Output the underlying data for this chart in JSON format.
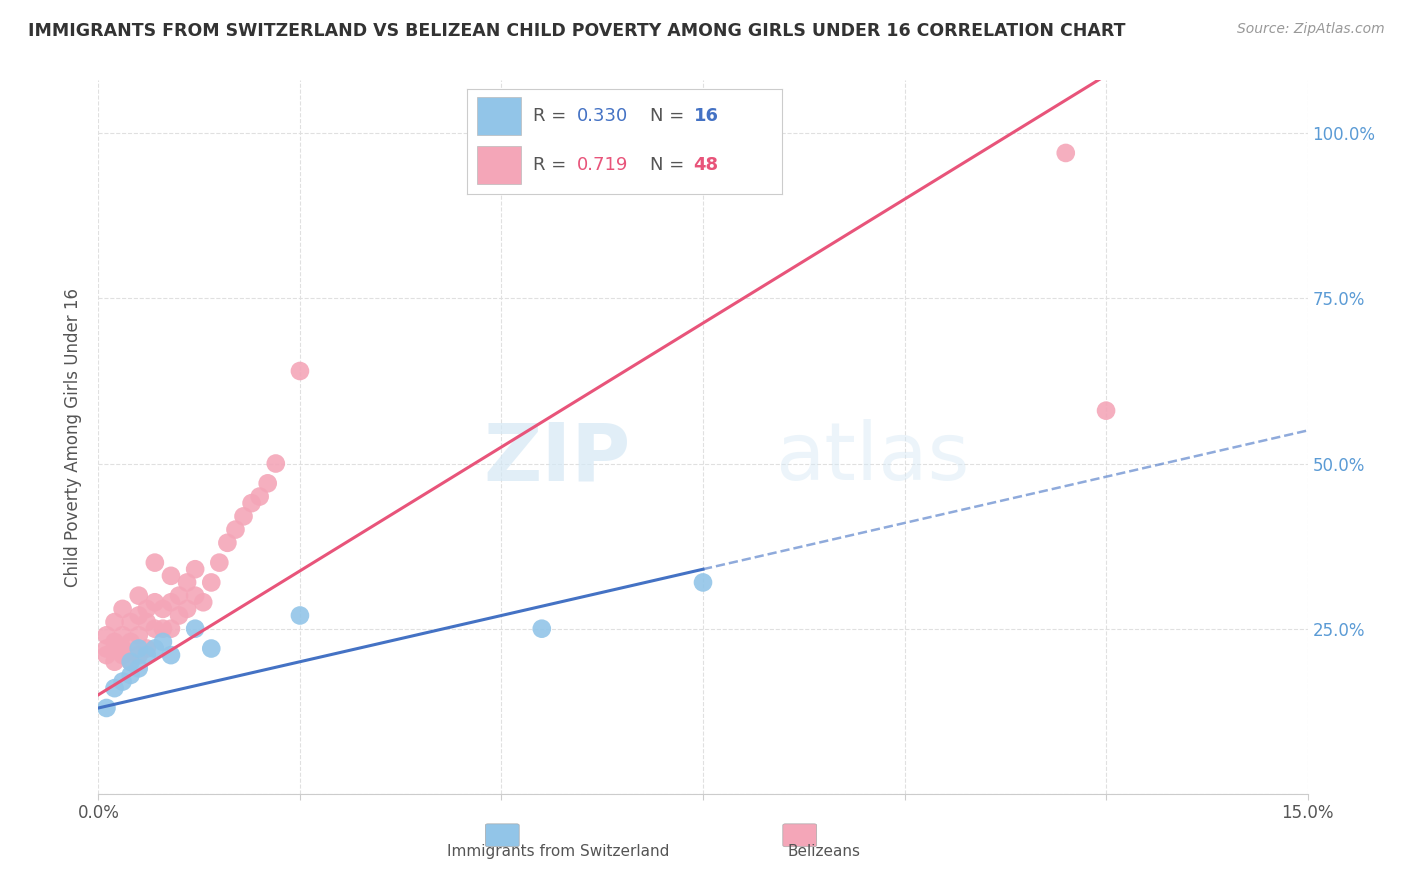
{
  "title": "IMMIGRANTS FROM SWITZERLAND VS BELIZEAN CHILD POVERTY AMONG GIRLS UNDER 16 CORRELATION CHART",
  "source": "Source: ZipAtlas.com",
  "ylabel": "Child Poverty Among Girls Under 16",
  "ytick_labels": [
    "",
    "25.0%",
    "50.0%",
    "75.0%",
    "100.0%"
  ],
  "ytick_values": [
    0.0,
    0.25,
    0.5,
    0.75,
    1.0
  ],
  "xmin": 0.0,
  "xmax": 0.15,
  "ymin": 0.0,
  "ymax": 1.08,
  "legend_blue_r": "0.330",
  "legend_blue_n": "16",
  "legend_pink_r": "0.719",
  "legend_pink_n": "48",
  "blue_color": "#92C5E8",
  "pink_color": "#F4A6B8",
  "blue_line_color": "#4472C4",
  "pink_line_color": "#E8547A",
  "blue_line_slope": 2.8,
  "blue_line_intercept": 0.13,
  "pink_line_slope": 7.5,
  "pink_line_intercept": 0.15,
  "watermark_zip": "ZIP",
  "watermark_atlas": "atlas",
  "background_color": "#ffffff",
  "grid_color": "#e0e0e0",
  "blue_x": [
    0.001,
    0.002,
    0.003,
    0.004,
    0.004,
    0.005,
    0.005,
    0.006,
    0.007,
    0.008,
    0.009,
    0.012,
    0.014,
    0.025,
    0.055,
    0.075
  ],
  "blue_y": [
    0.13,
    0.16,
    0.17,
    0.18,
    0.2,
    0.19,
    0.22,
    0.21,
    0.22,
    0.23,
    0.21,
    0.25,
    0.22,
    0.27,
    0.25,
    0.32
  ],
  "pink_x": [
    0.001,
    0.001,
    0.001,
    0.002,
    0.002,
    0.002,
    0.002,
    0.003,
    0.003,
    0.003,
    0.003,
    0.004,
    0.004,
    0.004,
    0.005,
    0.005,
    0.005,
    0.005,
    0.006,
    0.006,
    0.006,
    0.007,
    0.007,
    0.007,
    0.008,
    0.008,
    0.009,
    0.009,
    0.009,
    0.01,
    0.01,
    0.011,
    0.011,
    0.012,
    0.012,
    0.013,
    0.014,
    0.015,
    0.016,
    0.017,
    0.018,
    0.019,
    0.02,
    0.021,
    0.022,
    0.025,
    0.12,
    0.125
  ],
  "pink_y": [
    0.21,
    0.22,
    0.24,
    0.2,
    0.22,
    0.23,
    0.26,
    0.21,
    0.22,
    0.24,
    0.28,
    0.2,
    0.23,
    0.26,
    0.21,
    0.24,
    0.27,
    0.3,
    0.22,
    0.26,
    0.28,
    0.25,
    0.29,
    0.35,
    0.25,
    0.28,
    0.25,
    0.29,
    0.33,
    0.27,
    0.3,
    0.28,
    0.32,
    0.3,
    0.34,
    0.29,
    0.32,
    0.35,
    0.38,
    0.4,
    0.42,
    0.44,
    0.45,
    0.47,
    0.5,
    0.64,
    0.97,
    0.58
  ]
}
